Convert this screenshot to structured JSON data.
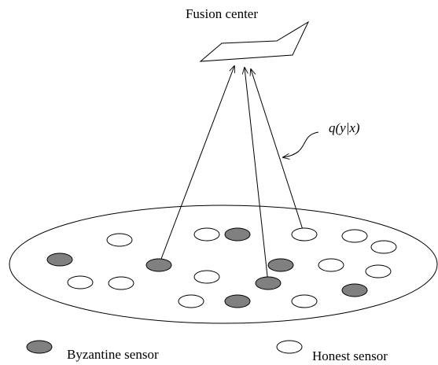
{
  "title": "Fusion center",
  "annotation": "q(y|x)",
  "legend": {
    "byzantine": "Byzantine sensor",
    "honest": "Honest sensor"
  }
}
